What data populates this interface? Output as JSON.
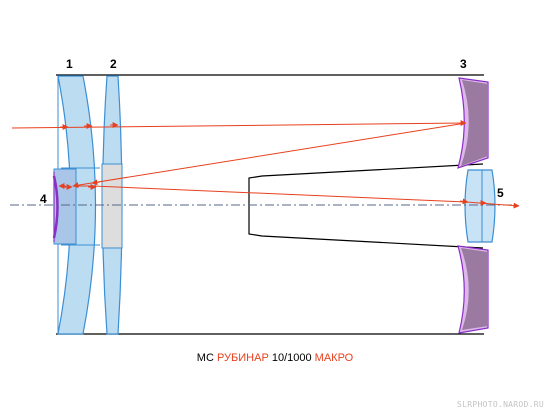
{
  "labels": {
    "lens1": "1",
    "lens2": "2",
    "mirror3": "3",
    "mirror4": "4",
    "lens5": "5"
  },
  "caption": {
    "prefix": "МС ",
    "name": "РУБИНАР",
    "spec": " 10/1000 ",
    "suffix": "МАКРО"
  },
  "watermark": "SLRPHOTO.NAROD.RU",
  "colors": {
    "lens_fill": "#bcdcf2",
    "lens_stroke": "#3b8fd4",
    "mirror_fill": "#9a7aa0",
    "mirror_stroke": "#8a2ec6",
    "mirror_glass": "#dcb8ea",
    "ray": "#e8401e",
    "axis": "#556688",
    "caption_accent": "#e8401e"
  }
}
